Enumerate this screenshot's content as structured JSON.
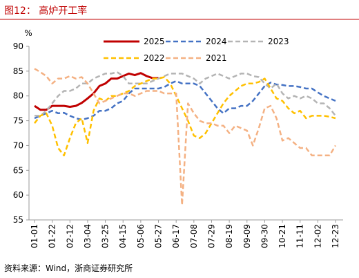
{
  "chart_data": {
    "type": "line",
    "title": "图12：  高炉开工率",
    "y_label": "%",
    "source": "资料来源：Wind，浙商证券研究所",
    "categories": [
      "01-01",
      null,
      null,
      "01-22",
      null,
      null,
      "02-12",
      null,
      null,
      "03-04",
      null,
      null,
      "03-25",
      null,
      null,
      "04-15",
      null,
      null,
      "05-06",
      null,
      null,
      "05-27",
      null,
      null,
      "06-17",
      null,
      null,
      "07-08",
      null,
      null,
      "07-29",
      null,
      null,
      "08-19",
      null,
      null,
      "09-09",
      null,
      null,
      "09-30",
      null,
      null,
      "10-21",
      null,
      null,
      "11-11",
      null,
      null,
      "12-02",
      null,
      null,
      "12-23"
    ],
    "ylim": [
      55,
      90
    ],
    "yticks": [
      55,
      60,
      65,
      70,
      75,
      80,
      85,
      90
    ],
    "series": [
      {
        "name": "2025",
        "color": "#c00000",
        "dashed": false,
        "values": [
          78,
          77.2,
          77.2,
          78,
          78,
          78,
          77.8,
          78,
          78.6,
          79.5,
          80.5,
          82,
          82.5,
          83.5,
          83.5,
          84,
          84.5,
          84.2,
          84.6,
          84,
          83.6,
          83.6,
          null,
          null,
          null,
          null,
          null,
          null,
          null,
          null,
          null,
          null,
          null,
          null,
          null,
          null,
          null,
          null,
          null,
          null,
          null,
          null,
          null,
          null,
          null,
          null,
          null,
          null,
          null,
          null,
          null,
          null
        ]
      },
      {
        "name": "2024",
        "color": "#4472c4",
        "dashed": true,
        "values": [
          75.5,
          76,
          76.5,
          77,
          76.5,
          76.6,
          76,
          75.5,
          75.2,
          75.5,
          76,
          77,
          77,
          77.5,
          78.5,
          79,
          80.5,
          81.5,
          81.5,
          81.5,
          81.5,
          81.5,
          81.8,
          82.5,
          83,
          82.5,
          82.5,
          82.5,
          82,
          80.5,
          79,
          77.5,
          76.5,
          77.5,
          77.5,
          78,
          78,
          79,
          80.5,
          82,
          82.7,
          82.3,
          82.2,
          82,
          82,
          81.8,
          81.5,
          81.5,
          80.7,
          80,
          79.5,
          79
        ]
      },
      {
        "name": "2023",
        "color": "#b4b4b4",
        "dashed": true,
        "values": [
          76,
          76,
          77,
          78.5,
          80,
          81,
          81,
          81.5,
          82.5,
          82.5,
          83.5,
          84,
          84.5,
          84.5,
          84.8,
          84,
          82.5,
          82.5,
          82.5,
          82.5,
          83,
          83.5,
          84,
          84.5,
          84.5,
          84.5,
          84,
          83.5,
          82.5,
          83.5,
          84,
          84.5,
          84,
          83.5,
          84,
          84.5,
          84.5,
          84,
          83.8,
          82.5,
          81.5,
          82.5,
          80.5,
          79.5,
          80,
          79.5,
          80,
          79.5,
          78.5,
          78.5,
          77.5,
          76
        ]
      },
      {
        "name": "2022",
        "color": "#ffc000",
        "dashed": true,
        "values": [
          74.5,
          76,
          76.5,
          74,
          69.5,
          68,
          71.5,
          74.5,
          75.5,
          70.5,
          77,
          79.5,
          79,
          80,
          80,
          80.5,
          81,
          82,
          82.5,
          83,
          83.5,
          83.5,
          83.8,
          82.5,
          80,
          77.5,
          75,
          72,
          71.5,
          72.5,
          74.5,
          76.5,
          78.5,
          80,
          81,
          82,
          82.5,
          82.5,
          82.8,
          83.5,
          81.5,
          79.5,
          79,
          77.5,
          76.5,
          77,
          75.5,
          76,
          76,
          76,
          75.8,
          75.5
        ]
      },
      {
        "name": "2021",
        "color": "#f4b183",
        "dashed": true,
        "values": [
          85.5,
          84.8,
          84,
          82.5,
          83.5,
          83.5,
          84,
          83.5,
          83.8,
          82.5,
          80.5,
          78.5,
          79,
          79.5,
          80,
          80.5,
          80.5,
          80,
          80.5,
          81,
          81,
          81,
          80.5,
          80.5,
          80.5,
          58,
          78.5,
          76.5,
          75,
          74.5,
          74.5,
          74,
          74,
          72.5,
          74,
          73.5,
          73,
          70,
          73.5,
          77.5,
          78,
          75.5,
          71,
          71.5,
          70.5,
          69.5,
          69.5,
          68,
          68,
          68,
          68,
          70
        ]
      }
    ]
  }
}
